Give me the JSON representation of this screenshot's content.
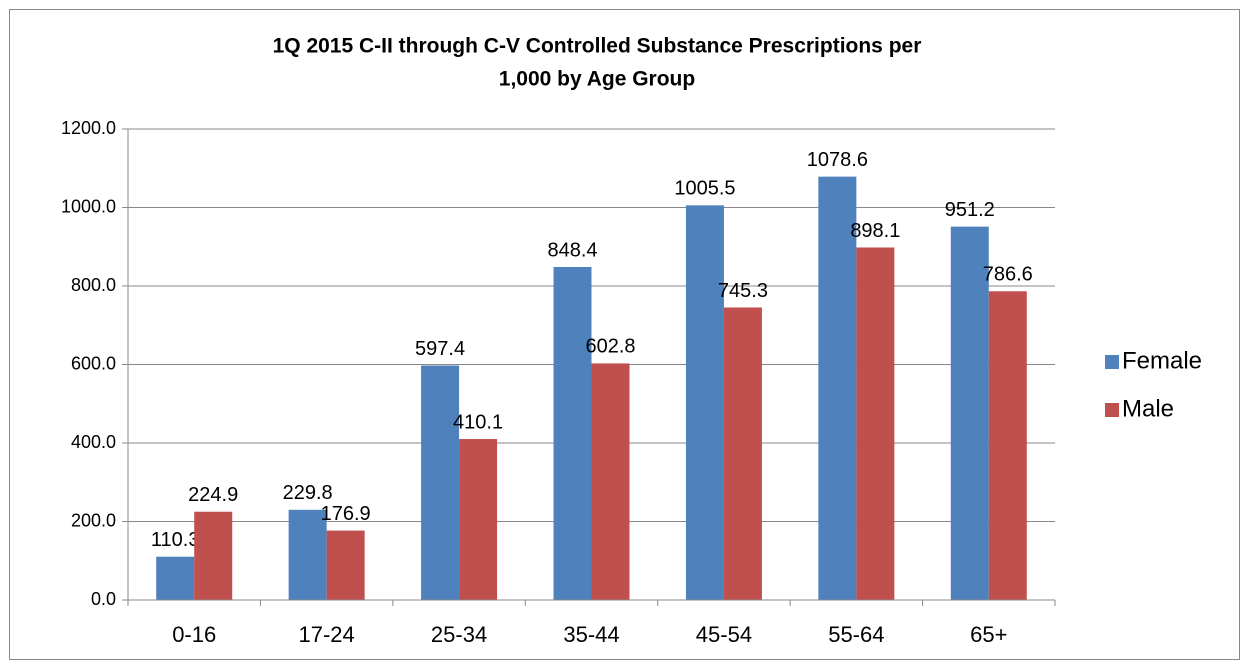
{
  "chart_data": {
    "type": "bar",
    "title": [
      "1Q 2015 C-II through C-V Controlled Substance Prescriptions per",
      "1,000 by Age Group"
    ],
    "categories": [
      "0-16",
      "17-24",
      "25-34",
      "35-44",
      "45-54",
      "55-64",
      "65+"
    ],
    "series": [
      {
        "name": "Female",
        "color": "#4f81bd",
        "values": [
          110.3,
          229.8,
          597.4,
          848.4,
          1005.5,
          1078.6,
          951.2
        ]
      },
      {
        "name": "Male",
        "color": "#c0504d",
        "values": [
          224.9,
          176.9,
          410.1,
          602.8,
          745.3,
          898.1,
          786.6
        ]
      }
    ],
    "ylim": [
      0,
      1200
    ],
    "yticks": [
      {
        "value": 0,
        "label": "0.0"
      },
      {
        "value": 200,
        "label": "200.0"
      },
      {
        "value": 400,
        "label": "400.0"
      },
      {
        "value": 600,
        "label": "600.0"
      },
      {
        "value": 800,
        "label": "800.0"
      },
      {
        "value": 1000,
        "label": "1000.0"
      },
      {
        "value": 1200,
        "label": "1200.0"
      }
    ],
    "grid": true,
    "legend": "right"
  }
}
